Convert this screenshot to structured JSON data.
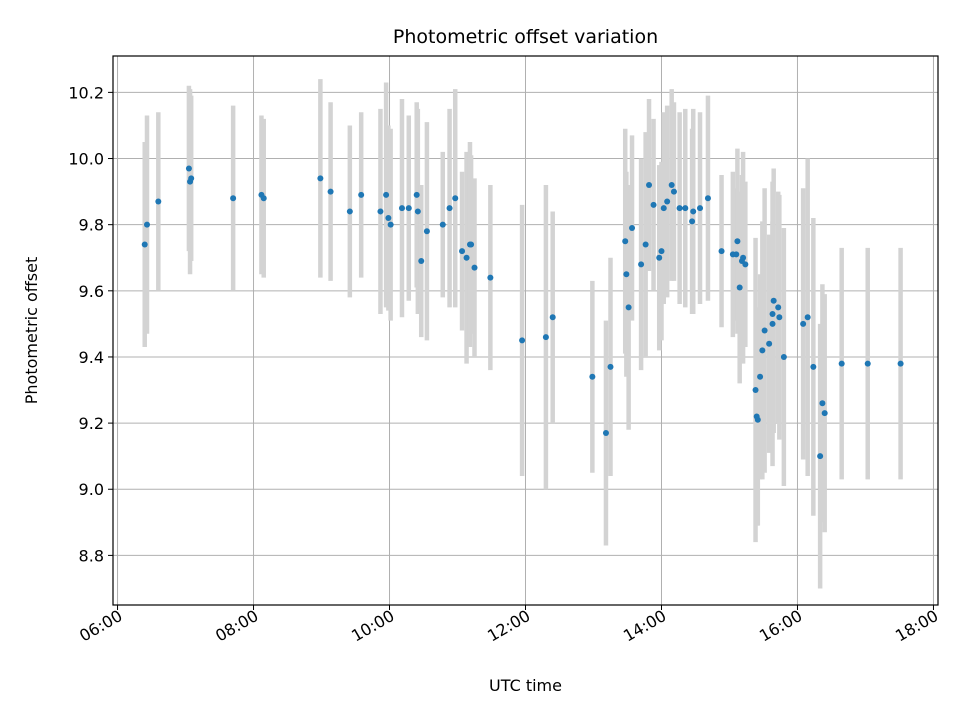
{
  "chart_data": {
    "type": "scatter",
    "title": "Photometric offset variation",
    "xlabel": "UTC time",
    "ylabel": "Photometric offset",
    "xlim": [
      "05:56",
      "18:04"
    ],
    "ylim": [
      8.65,
      10.31
    ],
    "grid": true,
    "x_ticks": [
      "06:00",
      "08:00",
      "10:00",
      "12:00",
      "14:00",
      "16:00",
      "18:00"
    ],
    "y_ticks": [
      8.8,
      9.0,
      9.2,
      9.4,
      9.6,
      9.8,
      10.0,
      10.2
    ],
    "colors": {
      "point": "#1f77b4",
      "errorbar": "#d3d3d3",
      "grid": "#b0b0b0"
    },
    "series": [
      {
        "x": [
          "06:24",
          "06:26",
          "06:36",
          "07:03",
          "07:04",
          "07:05",
          "07:42",
          "08:07",
          "08:09",
          "08:59",
          "09:08",
          "09:25",
          "09:35",
          "09:52",
          "09:57",
          "09:59",
          "10:01",
          "10:11",
          "10:17",
          "10:24",
          "10:25",
          "10:28",
          "10:33",
          "10:47",
          "10:53",
          "10:58",
          "11:04",
          "11:08",
          "11:11",
          "11:12",
          "11:15",
          "11:29",
          "11:57",
          "12:18",
          "12:24",
          "12:59",
          "13:11",
          "13:15",
          "13:28",
          "13:29",
          "13:31",
          "13:34",
          "13:42",
          "13:46",
          "13:49",
          "13:53",
          "13:58",
          "14:00",
          "14:02",
          "14:05",
          "14:09",
          "14:11",
          "14:16",
          "14:21",
          "14:27",
          "14:28",
          "14:34",
          "14:41",
          "14:53",
          "15:03",
          "15:06",
          "15:07",
          "15:09",
          "15:11",
          "15:12",
          "15:14",
          "15:23",
          "15:24",
          "15:25",
          "15:27",
          "15:29",
          "15:31",
          "15:35",
          "15:38",
          "15:38",
          "15:39",
          "15:43",
          "15:44",
          "15:48",
          "16:05",
          "16:09",
          "16:14",
          "16:20",
          "16:22",
          "16:24",
          "16:39",
          "17:02",
          "17:31"
        ],
        "y": [
          9.74,
          9.8,
          9.87,
          9.97,
          9.93,
          9.94,
          9.88,
          9.89,
          9.88,
          9.94,
          9.9,
          9.84,
          9.89,
          9.84,
          9.89,
          9.82,
          9.8,
          9.85,
          9.85,
          9.89,
          9.84,
          9.69,
          9.78,
          9.8,
          9.85,
          9.88,
          9.72,
          9.7,
          9.74,
          9.74,
          9.67,
          9.64,
          9.45,
          9.46,
          9.52,
          9.34,
          9.17,
          9.37,
          9.75,
          9.65,
          9.55,
          9.79,
          9.68,
          9.74,
          9.92,
          9.86,
          9.7,
          9.72,
          9.85,
          9.87,
          9.92,
          9.9,
          9.85,
          9.85,
          9.81,
          9.84,
          9.85,
          9.88,
          9.72,
          9.71,
          9.71,
          9.75,
          9.61,
          9.69,
          9.7,
          9.68,
          9.3,
          9.22,
          9.21,
          9.34,
          9.42,
          9.48,
          9.44,
          9.53,
          9.5,
          9.57,
          9.55,
          9.52,
          9.4,
          9.5,
          9.52,
          9.37,
          9.1,
          9.26,
          9.23,
          9.38,
          9.38,
          9.38
        ],
        "yerr": [
          0.31,
          0.33,
          0.27,
          0.25,
          0.28,
          0.25,
          0.28,
          0.24,
          0.24,
          0.3,
          0.27,
          0.26,
          0.25,
          0.31,
          0.34,
          0.28,
          0.29,
          0.33,
          0.28,
          0.28,
          0.31,
          0.23,
          0.33,
          0.22,
          0.3,
          0.33,
          0.24,
          0.32,
          0.31,
          0.27,
          0.27,
          0.28,
          0.41,
          0.46,
          0.32,
          0.29,
          0.34,
          0.33,
          0.34,
          0.31,
          0.37,
          0.28,
          0.32,
          0.34,
          0.26,
          0.26,
          0.28,
          0.27,
          0.29,
          0.29,
          0.29,
          0.27,
          0.29,
          0.3,
          0.28,
          0.31,
          0.29,
          0.31,
          0.23,
          0.25,
          0.2,
          0.28,
          0.29,
          0.26,
          0.32,
          0.25,
          0.46,
          0.33,
          0.32,
          0.31,
          0.39,
          0.43,
          0.33,
          0.28,
          0.43,
          0.4,
          0.35,
          0.37,
          0.39,
          0.41,
          0.48,
          0.45,
          0.4,
          0.36,
          0.36,
          0.35,
          0.35,
          0.35
        ]
      }
    ]
  }
}
